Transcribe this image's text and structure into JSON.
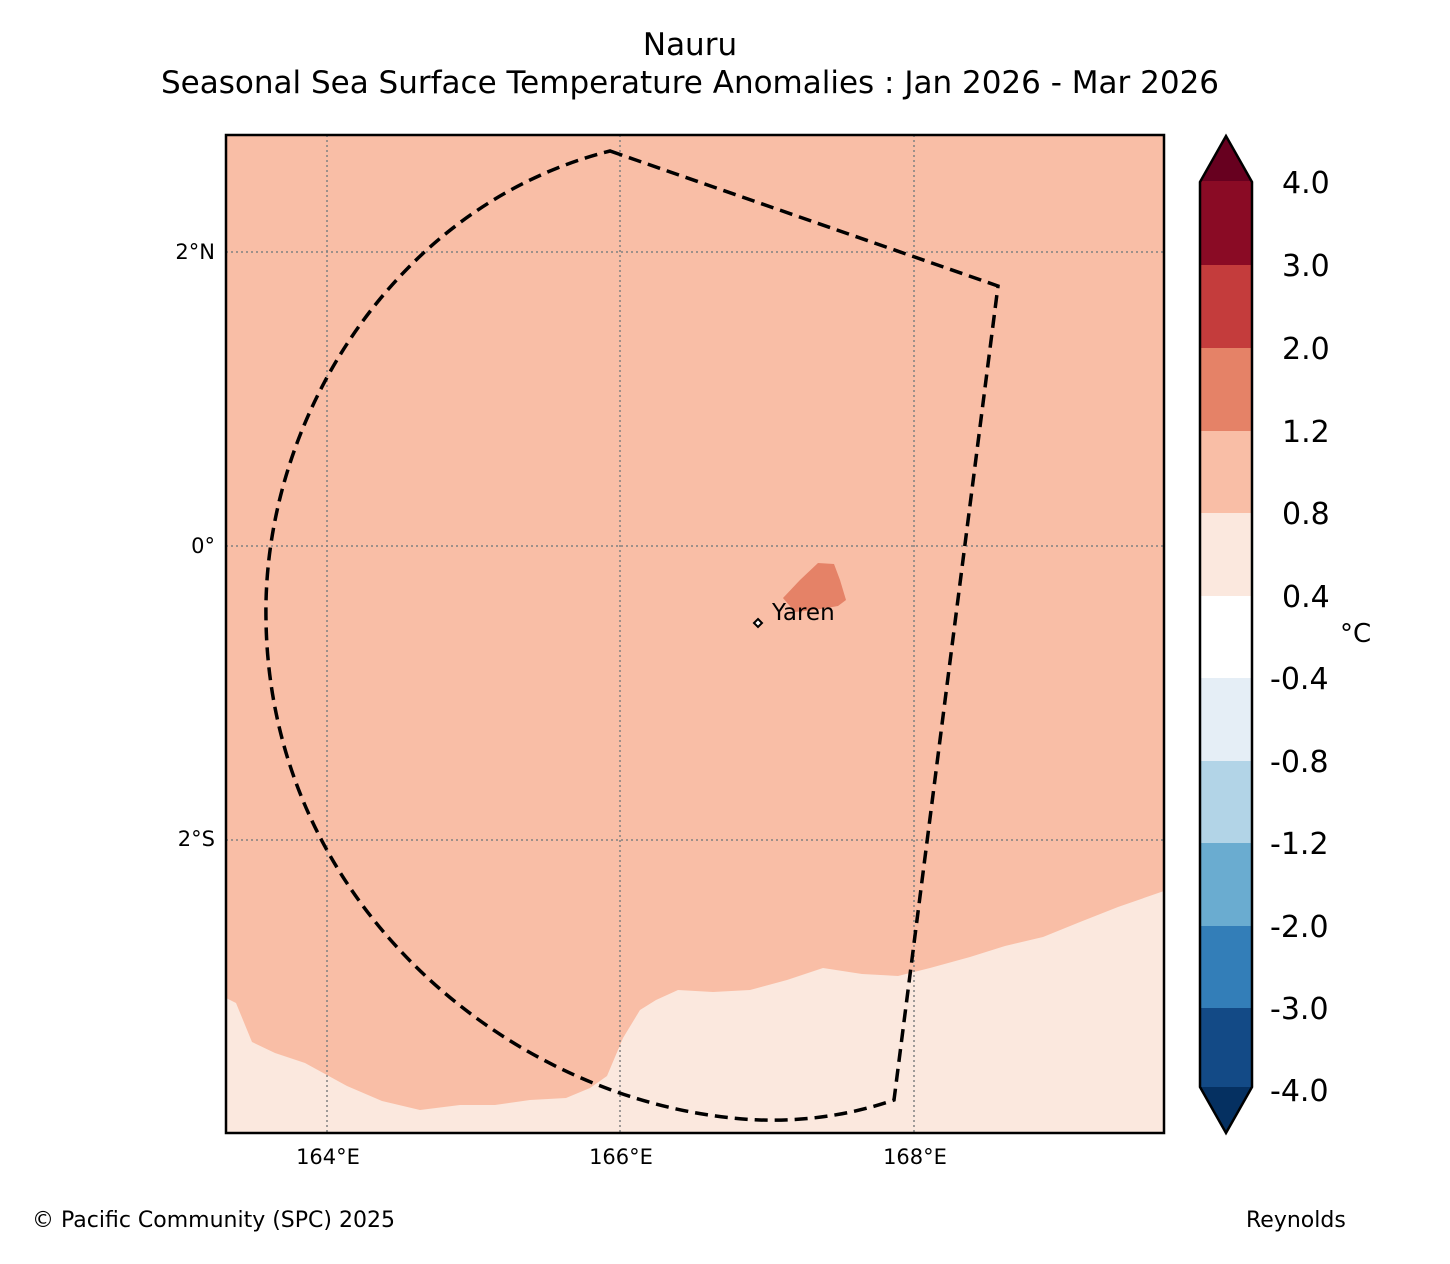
{
  "title": "Nauru",
  "subtitle": "Seasonal Sea Surface Temperature Anomalies : Jan 2026 - Mar 2026",
  "map": {
    "x_ticks": [
      "164°E",
      "166°E",
      "168°E"
    ],
    "y_ticks": [
      "2°N",
      "0°",
      "2°S"
    ],
    "place_label": "Yaren"
  },
  "colorbar": {
    "unit": "°C",
    "tick_labels": [
      "4.0",
      "3.0",
      "2.0",
      "1.2",
      "0.8",
      "0.4",
      "-0.4",
      "-0.8",
      "-1.2",
      "-2.0",
      "-3.0",
      "-4.0"
    ],
    "colors": {
      "over": "#67001f",
      "band_3_4": "#8a0b25",
      "band_2_3": "#c43c3c",
      "band_1_2_2": "#e58267",
      "band_0_8_1_2": "#f9bea6",
      "band_0_4_0_8": "#fbe8de",
      "band_neg0_4_0_4": "#ffffff",
      "band_neg0_8_neg0_4": "#e5eef6",
      "band_neg1_2_neg0_8": "#b2d4e7",
      "band_neg2_neg1_2": "#6aacd0",
      "band_neg3_neg2": "#337eb8",
      "band_neg4_neg3": "#134a86",
      "under": "#053061"
    }
  },
  "footer": {
    "copyright": "© Pacific Community (SPC) 2025",
    "source": "Reynolds"
  }
}
